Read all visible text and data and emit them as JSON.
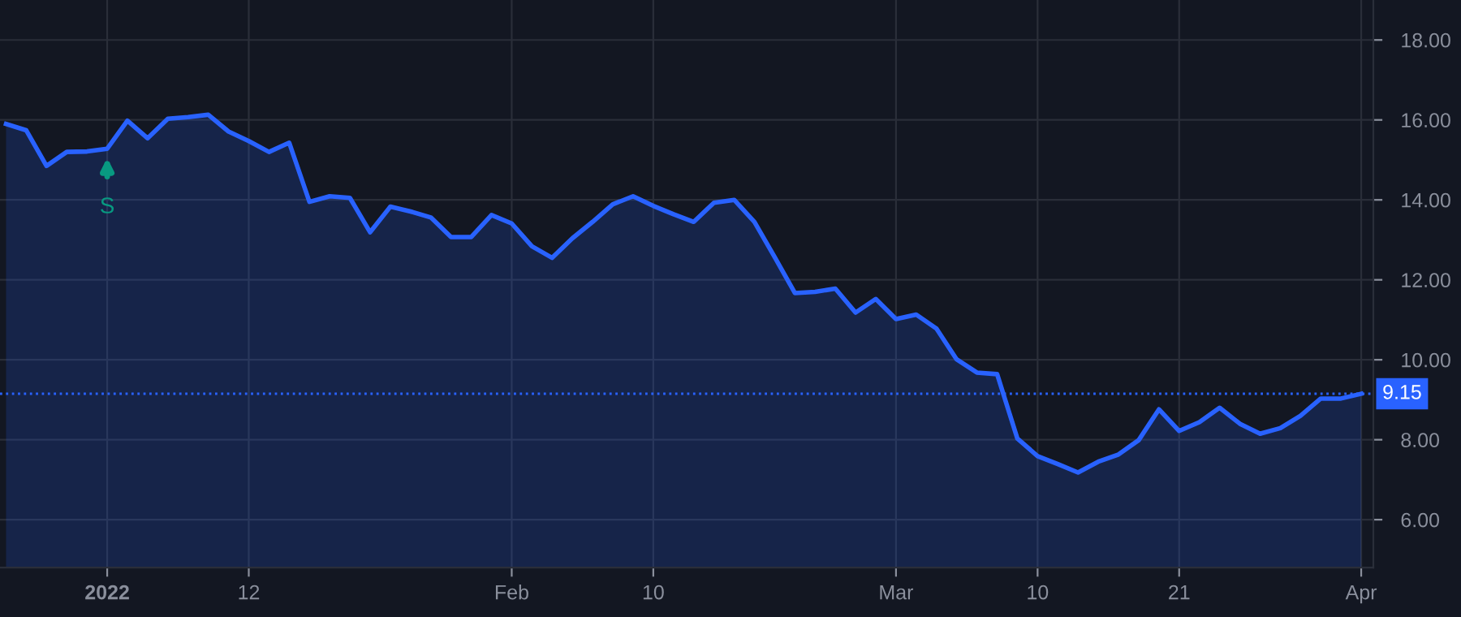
{
  "chart_data": {
    "type": "area",
    "categories": [
      null,
      null,
      null,
      null,
      null,
      "2022",
      null,
      null,
      null,
      null,
      null,
      null,
      "12",
      null,
      null,
      null,
      null,
      null,
      null,
      null,
      null,
      null,
      null,
      null,
      null,
      "Feb",
      null,
      null,
      null,
      null,
      null,
      null,
      "10",
      null,
      null,
      null,
      null,
      null,
      null,
      null,
      null,
      null,
      null,
      null,
      "Mar",
      null,
      null,
      null,
      null,
      null,
      null,
      "10",
      null,
      null,
      null,
      null,
      null,
      null,
      "21",
      null,
      null,
      null,
      null,
      null,
      null,
      null,
      null,
      "Apr"
    ],
    "series": [
      {
        "color": "#2962ff",
        "values": [
          15.9,
          15.74,
          14.85,
          15.2,
          15.21,
          15.28,
          15.98,
          15.54,
          16.03,
          16.07,
          16.13,
          15.71,
          15.47,
          15.2,
          15.43,
          13.95,
          14.09,
          14.05,
          13.19,
          13.83,
          13.71,
          13.56,
          13.07,
          13.07,
          13.62,
          13.41,
          12.84,
          12.55,
          13.04,
          13.45,
          13.89,
          14.09,
          13.85,
          13.64,
          13.45,
          13.93,
          14.0,
          13.45,
          12.57,
          11.67,
          11.7,
          11.78,
          11.18,
          11.52,
          11.02,
          11.13,
          10.78,
          10.01,
          9.68,
          9.64,
          8.03,
          7.59,
          7.39,
          7.18,
          7.45,
          7.63,
          7.99,
          8.76,
          8.22,
          8.44,
          8.8,
          8.4,
          8.15,
          8.29,
          8.6,
          9.03,
          9.03,
          9.15
        ]
      }
    ],
    "ylim": [
      4.8,
      19.0
    ],
    "yticks": [
      {
        "value": 6,
        "label": "6.00"
      },
      {
        "value": 8,
        "label": "8.00"
      },
      {
        "value": 10,
        "label": "10.00"
      },
      {
        "value": 12,
        "label": "12.00"
      },
      {
        "value": 14,
        "label": "14.00"
      },
      {
        "value": 16,
        "label": "16.00"
      },
      {
        "value": 18,
        "label": "18.00"
      }
    ],
    "ref_lines": [
      {
        "axis": "y",
        "value": 9.15,
        "label": "9.15",
        "color": "#2962ff",
        "line_style": "dotted"
      }
    ],
    "annotations": [
      {
        "text": "S",
        "x": "2022",
        "y": 15.28
      }
    ],
    "grid": true,
    "legend": false
  }
}
